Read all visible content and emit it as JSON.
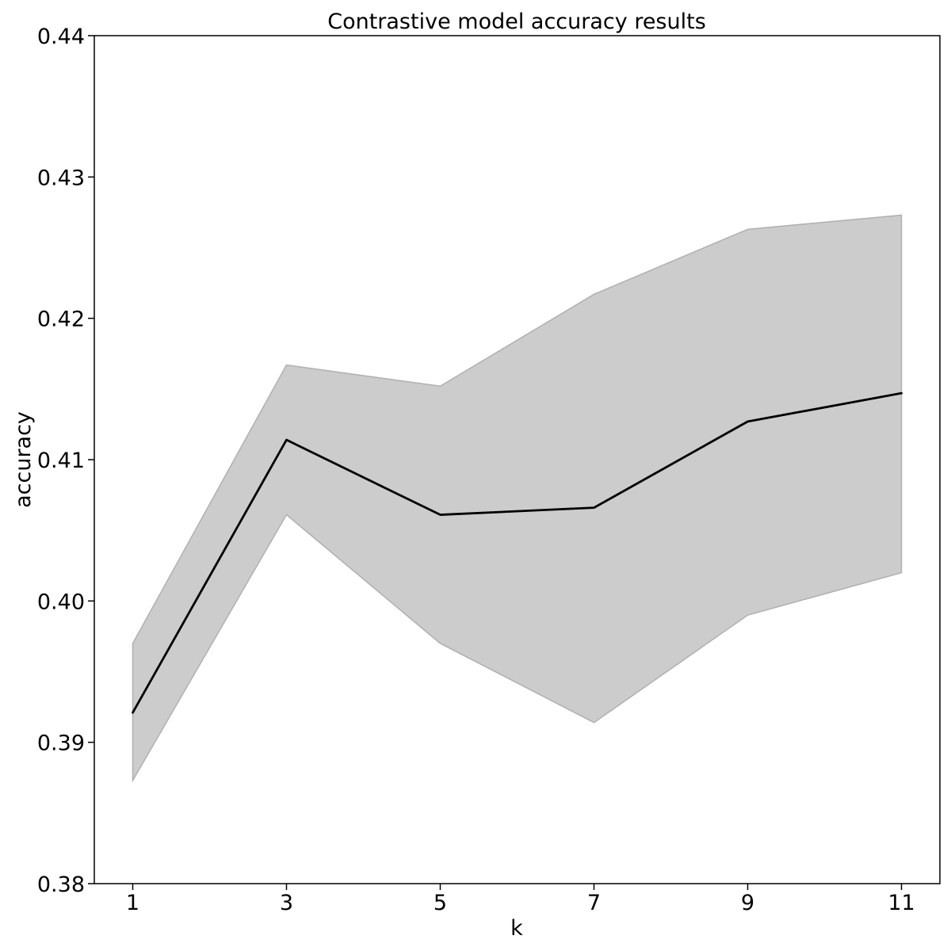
{
  "chart_data": {
    "type": "line",
    "title": "Contrastive model accuracy results",
    "xlabel": "k",
    "ylabel": "accuracy",
    "x": [
      1,
      3,
      5,
      7,
      9,
      11
    ],
    "xticks": [
      "1",
      "3",
      "5",
      "7",
      "9",
      "11"
    ],
    "xlim": [
      0.5,
      11.5
    ],
    "ylim": [
      0.38,
      0.44
    ],
    "yticks": [
      "0.38",
      "0.39",
      "0.40",
      "0.41",
      "0.42",
      "0.43",
      "0.44"
    ],
    "grid": false,
    "series": [
      {
        "values": [
          0.3921,
          0.4114,
          0.4061,
          0.4066,
          0.4127,
          0.4147
        ],
        "color": "#000000"
      }
    ],
    "band": {
      "lower": [
        0.3873,
        0.4061,
        0.397,
        0.3914,
        0.399,
        0.402
      ],
      "upper": [
        0.397,
        0.4167,
        0.4152,
        0.4217,
        0.4263,
        0.4273
      ],
      "color": "#cccccc",
      "edge_color": "#b0b0b0"
    }
  }
}
